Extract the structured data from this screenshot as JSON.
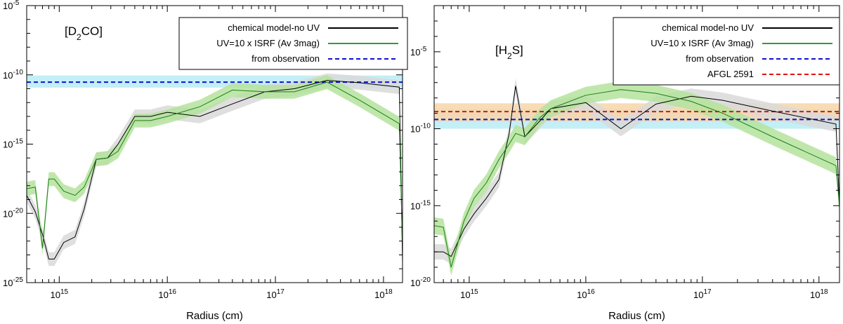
{
  "chart_data": [
    {
      "type": "line",
      "species": {
        "main": "[D",
        "sub": "2",
        "rest": "CO]"
      },
      "xlabel": "Radius (cm)",
      "ylabel": "",
      "xscale": "log",
      "yscale": "log",
      "xlim": [
        500000000000000.0,
        1.5e+18
      ],
      "ylim": [
        1e-25,
        1e-05
      ],
      "x_ticks": [
        {
          "value": 1000000000000000.0,
          "base": "10",
          "exp": "15"
        },
        {
          "value": 1e+16,
          "base": "10",
          "exp": "16"
        },
        {
          "value": 1e+17,
          "base": "10",
          "exp": "17"
        },
        {
          "value": 1e+18,
          "base": "10",
          "exp": "18"
        }
      ],
      "y_ticks": [
        {
          "value": 1e-25,
          "base": "10",
          "exp": "-25"
        },
        {
          "value": 1e-20,
          "base": "10",
          "exp": "-20"
        },
        {
          "value": 1e-15,
          "base": "10",
          "exp": "-15"
        },
        {
          "value": 1e-10,
          "base": "10",
          "exp": "-10"
        },
        {
          "value": 1e-05,
          "base": "10",
          "exp": "-5"
        }
      ],
      "legend": [
        {
          "label": "chemical model-no UV",
          "color": "#000000",
          "style": "solid"
        },
        {
          "label": "UV=10 x ISRF (Av 3mag)",
          "color": "#2ca02c",
          "style": "solid"
        },
        {
          "label": "from observation",
          "color": "#1010d0",
          "style": "dashed"
        }
      ],
      "observation_bands": [
        {
          "value": 3e-11,
          "low": 1.2e-11,
          "high": 9e-11,
          "color": "#1010d0",
          "fill": "#b8ecf4"
        }
      ],
      "series": [
        {
          "name": "chemical model-no UV",
          "color": "#000000",
          "band": "#d9d9d9",
          "band_width": 0.5,
          "x": [
            500000000000000.0,
            600000000000000.0,
            700000000000000.0,
            800000000000000.0,
            900000000000000.0,
            1100000000000000.0,
            1400000000000000.0,
            1700000000000000.0,
            2200000000000000.0,
            2800000000000000.0,
            3500000000000000.0,
            5000000000000000.0,
            7000000000000000.0,
            1e+16,
            2e+16,
            4e+16,
            8e+16,
            1.5e+17,
            3e+17,
            6e+17,
            1.4e+18,
            1.5e+18
          ],
          "y": [
            2e-19,
            1.3e-20,
            3e-22,
            5e-24,
            5e-24,
            8e-23,
            2e-22,
            2e-20,
            8e-17,
            1e-16,
            1e-15,
            1e-13,
            1e-13,
            2e-13,
            1e-13,
            8e-13,
            6e-12,
            1e-11,
            4e-11,
            2.7e-11,
            1.3e-11,
            3e-24
          ]
        },
        {
          "name": "UV=10 x ISRF (Av 3mag)",
          "color": "#1a7f1a",
          "band": "#b5e39c",
          "band_width": 0.5,
          "x": [
            500000000000000.0,
            600000000000000.0,
            700000000000000.0,
            800000000000000.0,
            900000000000000.0,
            1100000000000000.0,
            1400000000000000.0,
            1700000000000000.0,
            2200000000000000.0,
            2800000000000000.0,
            3500000000000000.0,
            5000000000000000.0,
            7000000000000000.0,
            1e+16,
            2e+16,
            4e+16,
            8e+16,
            1.5e+17,
            3e+17,
            6e+17,
            1.4e+18,
            1.5e+18
          ],
          "y": [
            6e-19,
            8e-19,
            3e-23,
            3e-18,
            3e-18,
            4e-19,
            2e-19,
            8e-19,
            8e-17,
            1e-16,
            3e-16,
            5e-14,
            5e-14,
            1e-13,
            5e-13,
            8e-12,
            6e-12,
            6e-12,
            3e-11,
            1.5e-12,
            3e-14,
            3e-23
          ]
        }
      ]
    },
    {
      "type": "line",
      "species": {
        "main": "[H",
        "sub": "2",
        "rest": "S]"
      },
      "xlabel": "Radius (cm)",
      "ylabel": "",
      "xscale": "log",
      "yscale": "log",
      "xlim": [
        500000000000000.0,
        1.5e+18
      ],
      "ylim": [
        1e-20,
        0.01
      ],
      "x_ticks": [
        {
          "value": 1000000000000000.0,
          "base": "10",
          "exp": "15"
        },
        {
          "value": 1e+16,
          "base": "10",
          "exp": "16"
        },
        {
          "value": 1e+17,
          "base": "10",
          "exp": "17"
        },
        {
          "value": 1e+18,
          "base": "10",
          "exp": "18"
        }
      ],
      "y_ticks": [
        {
          "value": 1e-20,
          "base": "10",
          "exp": "-20"
        },
        {
          "value": 1e-15,
          "base": "10",
          "exp": "-15"
        },
        {
          "value": 1e-10,
          "base": "10",
          "exp": "-10"
        },
        {
          "value": 1e-05,
          "base": "10",
          "exp": "-5"
        }
      ],
      "legend": [
        {
          "label": "chemical model-no UV",
          "color": "#000000",
          "style": "solid"
        },
        {
          "label": "UV=10 x ISRF (Av 3mag)",
          "color": "#2ca02c",
          "style": "solid"
        },
        {
          "label": "from observation",
          "color": "#1010d0",
          "style": "dashed"
        },
        {
          "label": "AFGL 2591",
          "color": "#e01010",
          "style": "dashed"
        }
      ],
      "observation_bands": [
        {
          "value": 4e-10,
          "low": 1e-10,
          "high": 2e-09,
          "color": "#1010d0",
          "fill": "#b8ecf4"
        },
        {
          "value": 1.3e-09,
          "low": 3e-10,
          "high": 4.5e-09,
          "color": "#e01010",
          "fill": "#f8d6a8"
        }
      ],
      "series": [
        {
          "name": "chemical model-no UV",
          "color": "#000000",
          "band": "#d9d9d9",
          "band_width": 0.5,
          "x": [
            500000000000000.0,
            600000000000000.0,
            700000000000000.0,
            900000000000000.0,
            1100000000000000.0,
            1400000000000000.0,
            1800000000000000.0,
            2200000000000000.0,
            2500000000000000.0,
            3000000000000000.0,
            4000000000000000.0,
            5000000000000000.0,
            1e+16,
            2e+16,
            4e+16,
            8e+16,
            1.5e+17,
            4e+17,
            1.4e+18,
            1.5e+18
          ],
          "y": [
            1e-18,
            1e-18,
            5e-19,
            3e-17,
            3e-16,
            3e-15,
            5e-14,
            5e-11,
            6e-08,
            3e-11,
            3e-10,
            2e-09,
            5e-09,
            1e-10,
            4e-09,
            1.3e-08,
            7e-09,
            1.4e-09,
            2e-10,
            1e-15
          ]
        },
        {
          "name": "UV=10 x ISRF (Av 3mag)",
          "color": "#1a7f1a",
          "band": "#b5e39c",
          "band_width": 0.55,
          "x": [
            500000000000000.0,
            600000000000000.0,
            700000000000000.0,
            900000000000000.0,
            1100000000000000.0,
            1400000000000000.0,
            1800000000000000.0,
            2200000000000000.0,
            2500000000000000.0,
            3000000000000000.0,
            4000000000000000.0,
            5000000000000000.0,
            1e+16,
            2e+16,
            4e+16,
            8e+16,
            1.5e+17,
            4e+17,
            1.4e+18,
            1.5e+18
          ],
          "y": [
            5e-17,
            4e-17,
            1e-19,
            1e-16,
            3e-15,
            3e-14,
            1e-12,
            1e-11,
            5e-11,
            3e-11,
            5e-10,
            2e-09,
            1.5e-08,
            3.5e-08,
            2e-08,
            6e-09,
            1e-09,
            3e-11,
            4e-13,
            1e-15
          ]
        }
      ]
    }
  ]
}
